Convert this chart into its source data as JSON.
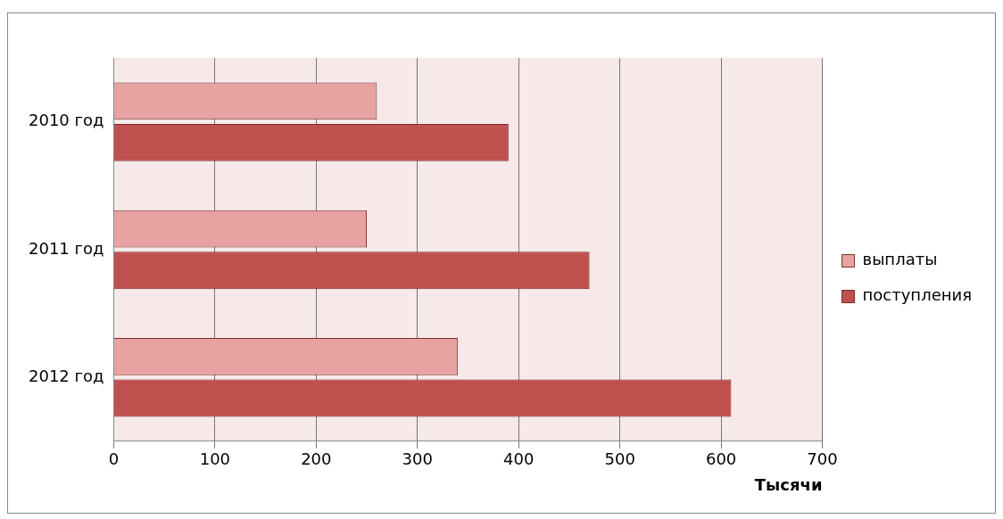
{
  "chart_data": {
    "type": "bar",
    "orientation": "horizontal",
    "categories": [
      "2010 год",
      "2011 год",
      "2012 год"
    ],
    "series": [
      {
        "name": "выплаты",
        "color": "#e6a3a2",
        "values": [
          260,
          250,
          340
        ]
      },
      {
        "name": "поступления",
        "color": "#c0504d",
        "values": [
          390,
          470,
          610
        ]
      }
    ],
    "xlim": [
      0,
      700
    ],
    "xticks": [
      0,
      100,
      200,
      300,
      400,
      500,
      600,
      700
    ],
    "xlabel": "Тысячи",
    "grid": "x",
    "legend": "right"
  }
}
